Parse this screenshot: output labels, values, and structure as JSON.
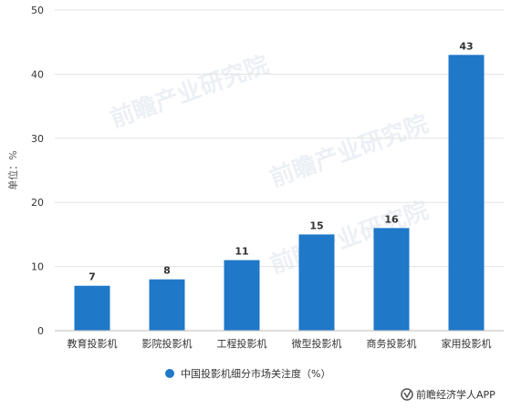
{
  "chart_data": {
    "type": "bar",
    "categories": [
      "教育投影机",
      "影院投影机",
      "工程投影机",
      "微型投影机",
      "商务投影机",
      "家用投影机"
    ],
    "series": [
      {
        "name": "中国投影机细分市场关注度（%）",
        "values": [
          7,
          8,
          11,
          15,
          16,
          43
        ]
      }
    ],
    "ylabel": "单位：%",
    "xlabel": "",
    "title": "",
    "ylim": [
      0,
      50
    ],
    "yticks": [
      0,
      10,
      20,
      30,
      40,
      50
    ],
    "grid": true,
    "legend_position": "bottom-center",
    "bar_color": "#1f78c8",
    "data_labels": true
  },
  "watermark": {
    "text": "前瞻产业研究院"
  },
  "footer": {
    "text": "前瞻经济学人APP"
  }
}
